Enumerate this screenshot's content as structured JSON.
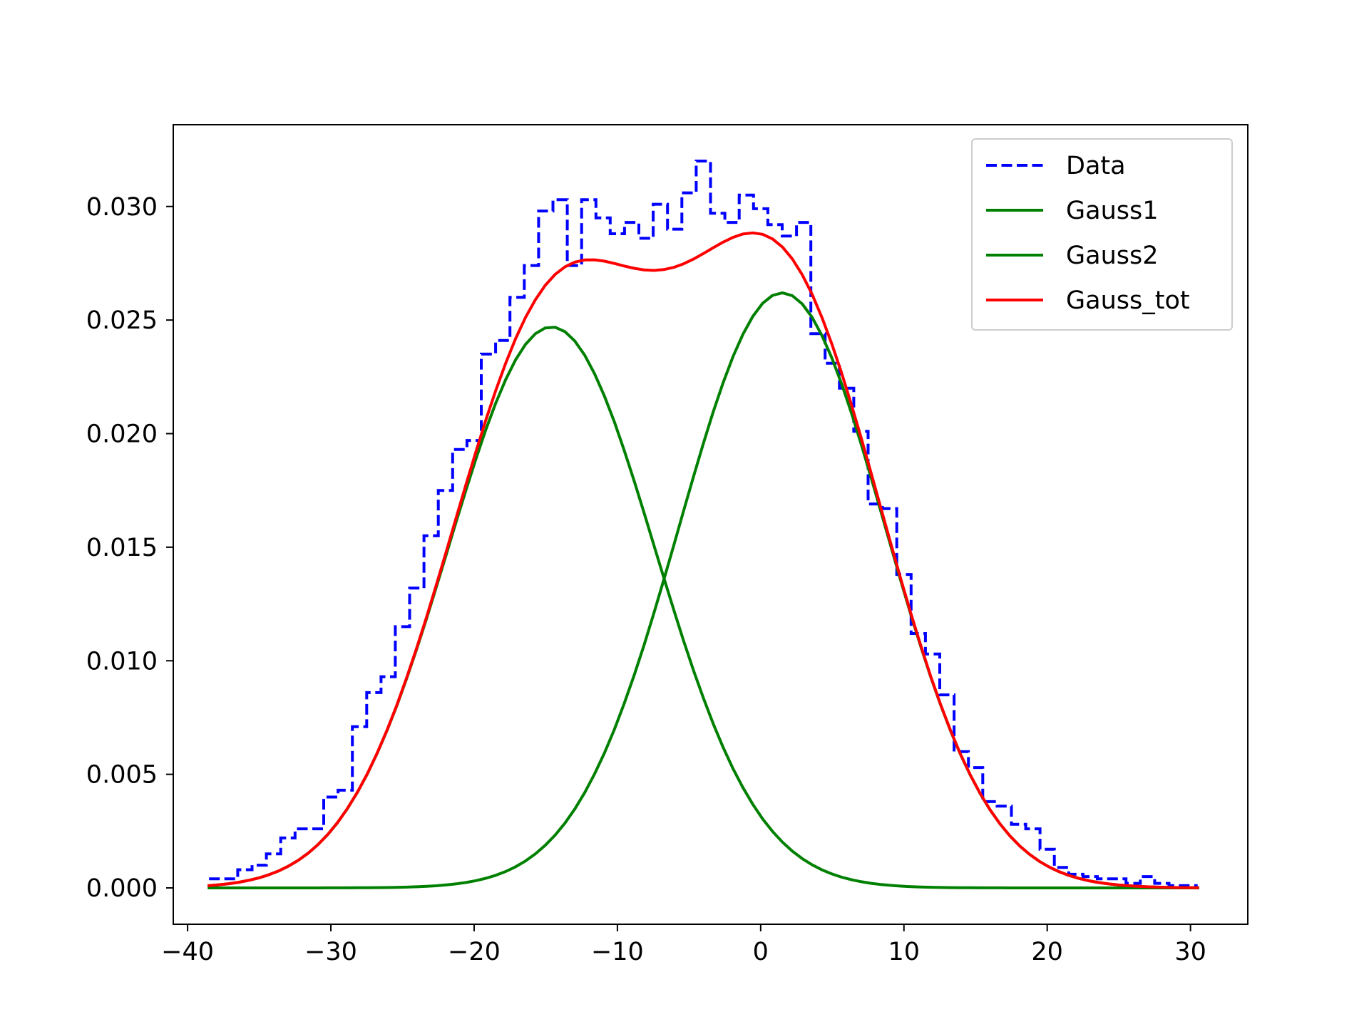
{
  "chart_data": {
    "type": "line",
    "title": "",
    "xlabel": "",
    "ylabel": "",
    "xlim": [
      -41,
      34
    ],
    "ylim": [
      -0.0016,
      0.0336
    ],
    "xticks": [
      -40,
      -30,
      -20,
      -10,
      0,
      10,
      20,
      30
    ],
    "xtick_labels": [
      "−40",
      "−30",
      "−20",
      "−10",
      "0",
      "10",
      "20",
      "30"
    ],
    "yticks": [
      0.0,
      0.005,
      0.01,
      0.015,
      0.02,
      0.025,
      0.03
    ],
    "ytick_labels": [
      "0.000",
      "0.005",
      "0.010",
      "0.015",
      "0.020",
      "0.025",
      "0.030"
    ],
    "grid": false,
    "legend_position": "top-right",
    "series": [
      {
        "name": "Data",
        "style": "dashed-step",
        "color": "#0000ff",
        "x": [
          -38.5,
          -36.5,
          -35.5,
          -34.5,
          -33.5,
          -32.5,
          -30.5,
          -29.5,
          -28.5,
          -27.5,
          -26.5,
          -25.5,
          -24.5,
          -23.5,
          -22.5,
          -21.5,
          -20.5,
          -19.5,
          -18.5,
          -17.5,
          -16.5,
          -15.5,
          -14.5,
          -13.5,
          -12.5,
          -11.5,
          -10.5,
          -9.5,
          -8.5,
          -7.5,
          -6.5,
          -5.5,
          -4.5,
          -3.5,
          -2.5,
          -1.5,
          -0.5,
          0.5,
          1.5,
          2.5,
          3.5,
          4.5,
          5.5,
          6.5,
          7.5,
          8.5,
          9.5,
          10.5,
          11.5,
          12.5,
          13.5,
          14.5,
          15.5,
          16.5,
          17.5,
          18.5,
          19.5,
          20.5,
          21.5,
          22.5,
          23.5,
          24.5,
          25.5,
          26.5,
          27.5,
          28.5,
          29.5,
          30.5
        ],
        "y": [
          0.0004,
          0.0008,
          0.001,
          0.0015,
          0.0022,
          0.0026,
          0.004,
          0.0043,
          0.0071,
          0.0086,
          0.0093,
          0.0115,
          0.0132,
          0.0155,
          0.0175,
          0.0193,
          0.0197,
          0.0235,
          0.0241,
          0.026,
          0.0274,
          0.0298,
          0.0303,
          0.0274,
          0.0303,
          0.0295,
          0.0288,
          0.0293,
          0.0286,
          0.0301,
          0.029,
          0.0306,
          0.032,
          0.0297,
          0.0293,
          0.0305,
          0.0299,
          0.0292,
          0.0287,
          0.0293,
          0.0244,
          0.0231,
          0.022,
          0.0201,
          0.0169,
          0.0167,
          0.0138,
          0.0112,
          0.0103,
          0.0085,
          0.006,
          0.0053,
          0.0038,
          0.0036,
          0.0028,
          0.0026,
          0.0017,
          0.0009,
          0.0006,
          0.0005,
          0.0004,
          0.0004,
          0.0002,
          0.0005,
          0.0002,
          0.0001,
          0.0001,
          0.0001
        ]
      },
      {
        "name": "Gauss1",
        "style": "solid",
        "color": "#008000",
        "amplitude": 0.0247,
        "mean": -14.6,
        "sigma": 7.2
      },
      {
        "name": "Gauss2",
        "style": "solid",
        "color": "#008000",
        "amplitude": 0.0262,
        "mean": 1.5,
        "sigma": 7.2
      },
      {
        "name": "Gauss_tot",
        "style": "solid",
        "color": "#ff0000"
      }
    ],
    "x_range_curves": [
      -38.5,
      30.5
    ]
  }
}
